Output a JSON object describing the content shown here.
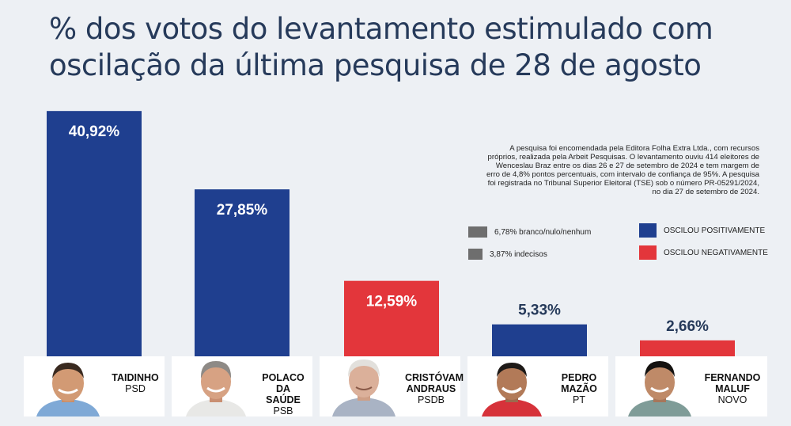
{
  "header": {
    "title_line1": "% dos votos do levantamento estimulado com",
    "title_line2": "oscilação da última pesquisa de 28 de agosto"
  },
  "note": "A pesquisa foi encomendada pela Editora Folha Extra Ltda., com recursos próprios, realizada pela Arbeit Pesquisas. O levantamento ouviu 414 eleitores de Wenceslau Braz entre os dias 26 e 27 de setembro de 2024 e tem margem de erro de 4,8% pontos percentuais, com intervalo de confiança de 95%. A pesquisa foi registrada no Tribunal Superior Eleitoral (TSE) sob o número PR-05291/2024, no dia 27 de setembro de 2024.",
  "legend": {
    "blank": "6,78% branco/nulo/nenhum",
    "undecided": "3,87% indecisos",
    "positive": "OSCILOU POSITIVAMENTE",
    "negative": "OSCILOU NEGATIVAMENTE"
  },
  "colors": {
    "positive": "#1f3f8f",
    "negative": "#e3363b",
    "neutral": "#6e6e6e",
    "title": "#263a5a"
  },
  "chart_data": {
    "type": "bar",
    "title": "% dos votos do levantamento estimulado com oscilação da última pesquisa de 28 de agosto",
    "categories": [
      "TAIDINHO",
      "POLACO DA SAÚDE",
      "CRISTÓVAM ANDRAUS",
      "PEDRO MAZÃO",
      "FERNANDO MALUF"
    ],
    "values": [
      40.92,
      27.85,
      12.59,
      5.33,
      2.66
    ],
    "labels": [
      "40,92%",
      "27,85%",
      "12,59%",
      "5,33%",
      "2,66%"
    ],
    "oscillation": [
      "positive",
      "positive",
      "negative",
      "positive",
      "negative"
    ],
    "other": [
      {
        "label": "branco/nulo/nenhum",
        "value": 6.78
      },
      {
        "label": "indecisos",
        "value": 3.87
      }
    ],
    "ylim": [
      0,
      42
    ]
  },
  "candidates": [
    {
      "name_line1": "TAIDINHO",
      "name_line2": "",
      "party": "PSD"
    },
    {
      "name_line1": "POLACO DA",
      "name_line2": "SAÚDE",
      "party": "PSB"
    },
    {
      "name_line1": "CRISTÓVAM",
      "name_line2": "ANDRAUS",
      "party": "PSDB"
    },
    {
      "name_line1": "PEDRO",
      "name_line2": "MAZÃO",
      "party": "PT"
    },
    {
      "name_line1": "FERNANDO",
      "name_line2": "MALUF",
      "party": "NOVO"
    }
  ]
}
